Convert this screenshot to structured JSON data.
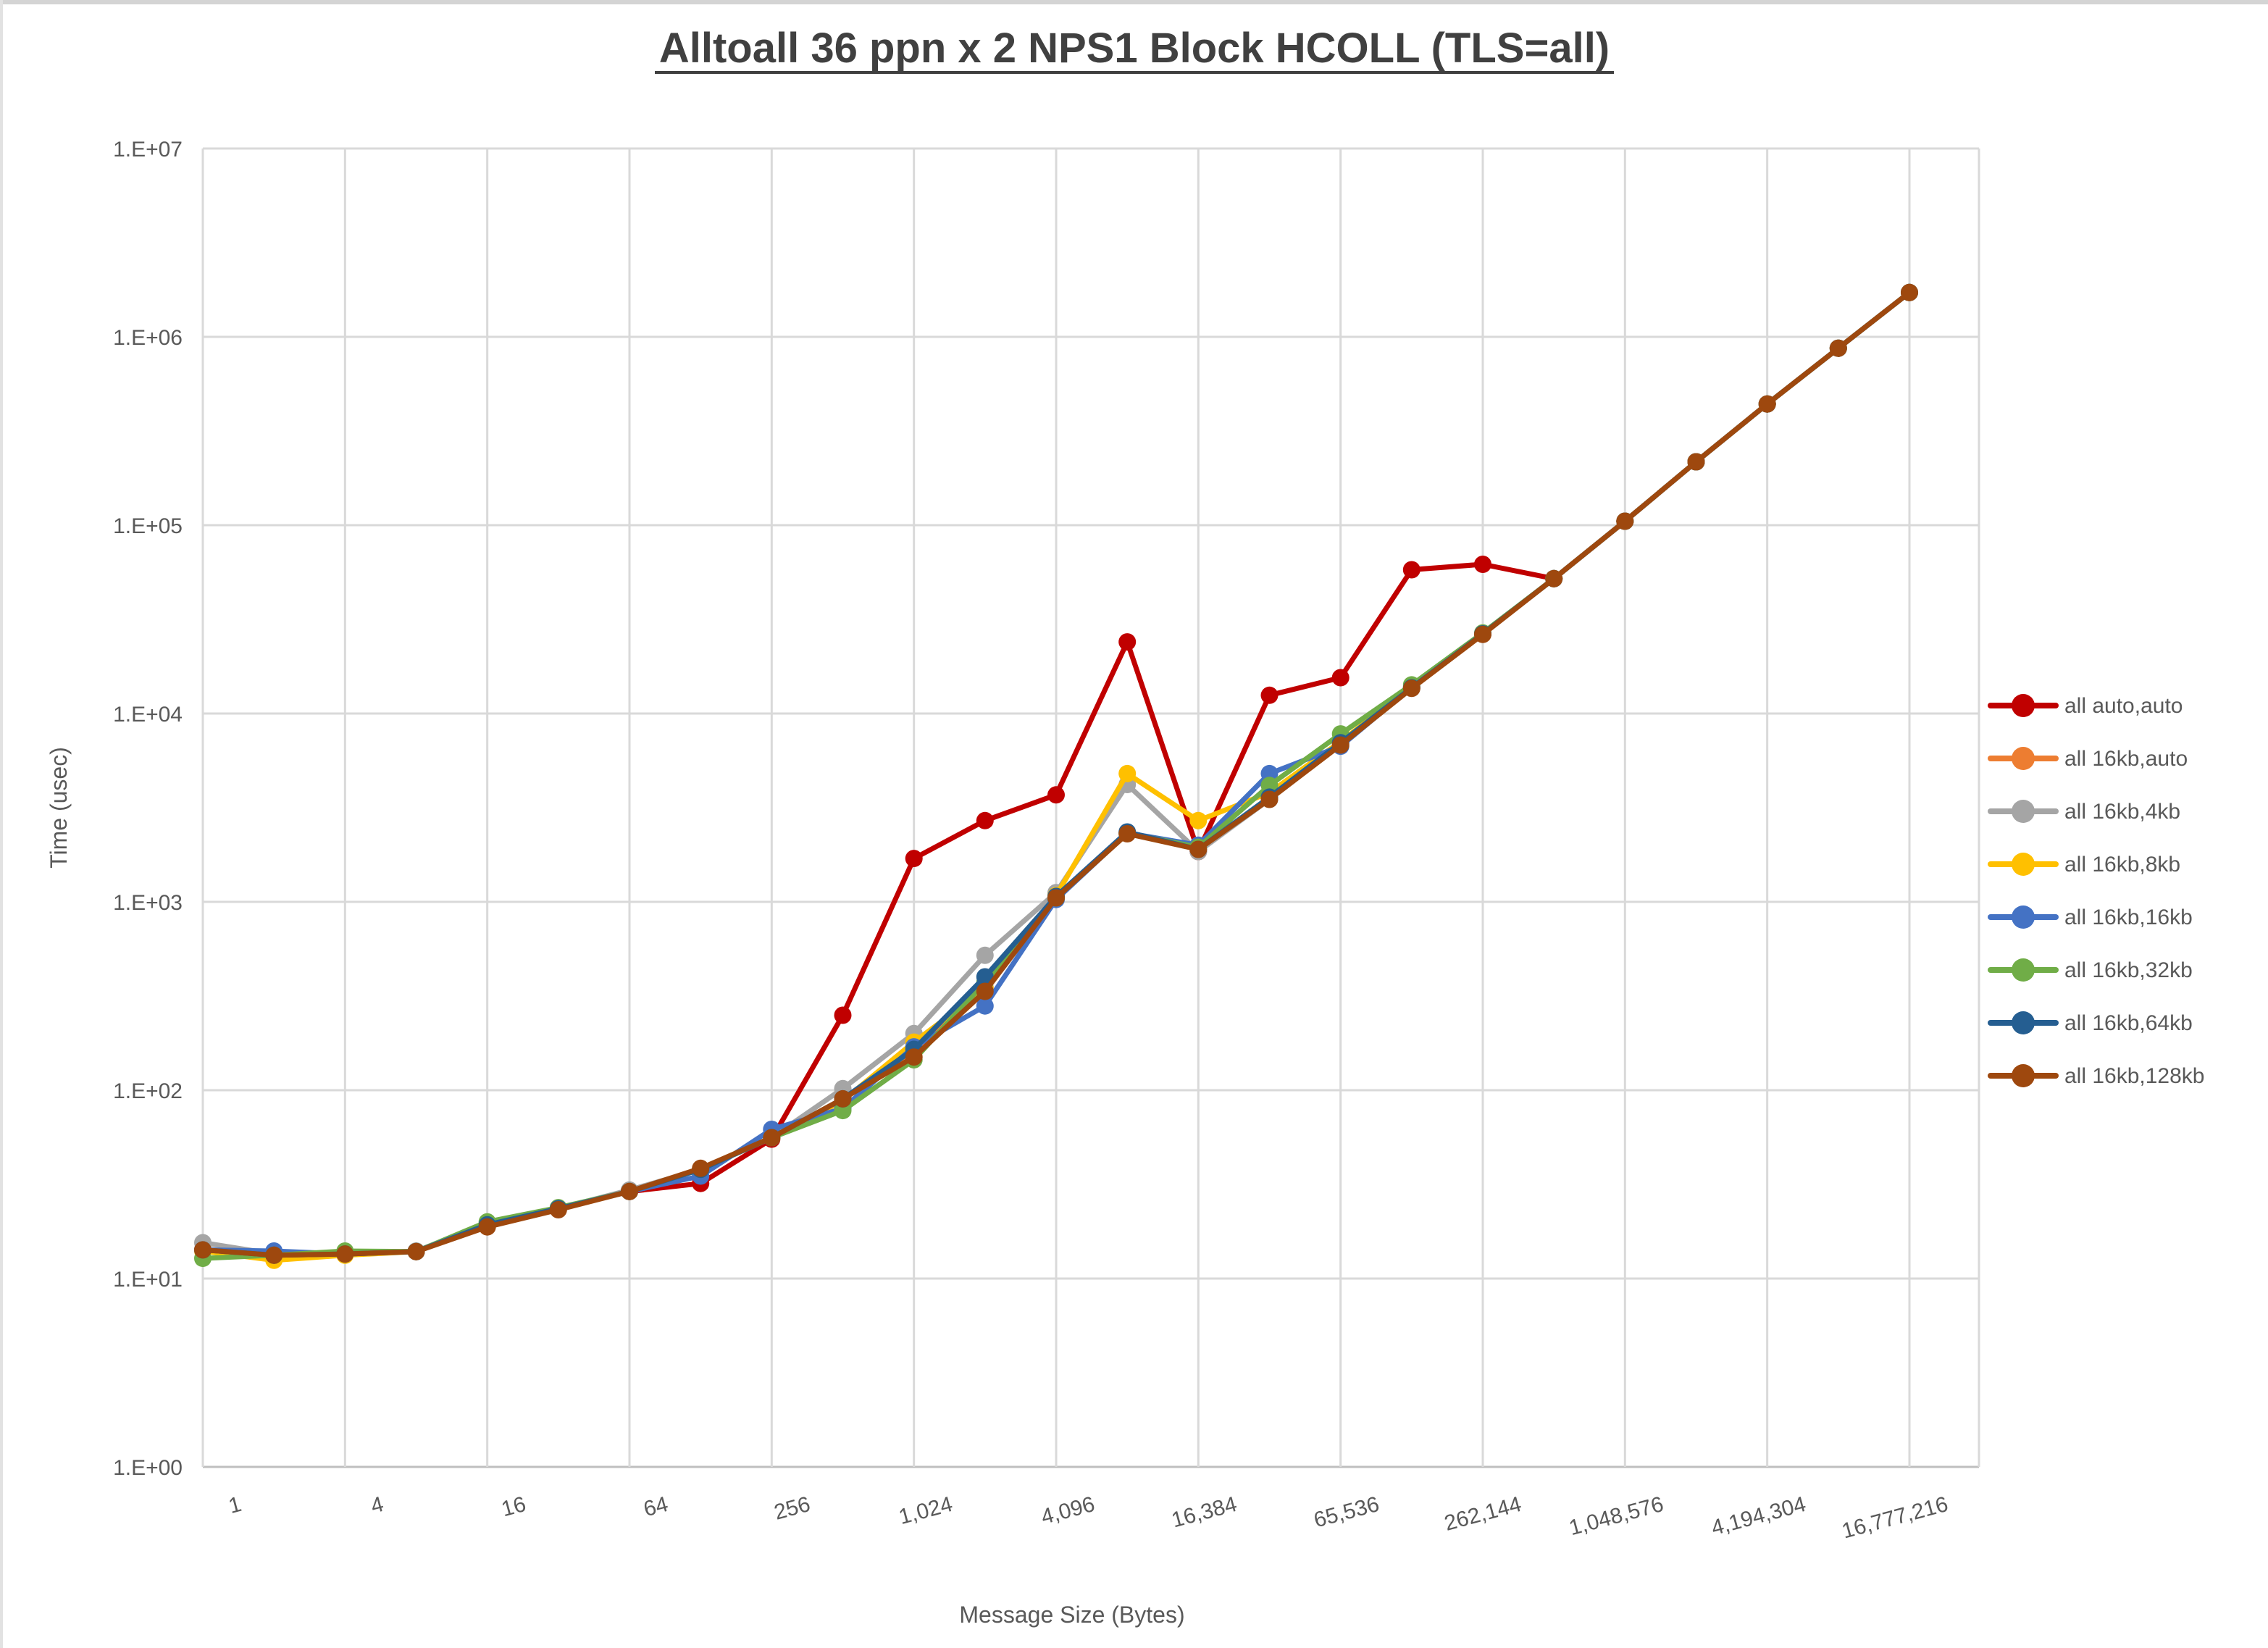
{
  "chart": {
    "title": "Alltoall 36 ppn x 2 NPS1 Block HCOLL (TLS=all)",
    "x_axis_title": "Message Size (Bytes)",
    "y_axis_title": "Time (usec)"
  },
  "colors": {
    "title_text": "#404040",
    "axis_text": "#595959",
    "gridline": "#D9D9D9",
    "axis_line": "#BFBFBF",
    "background": "#FFFFFF"
  },
  "chart_data": {
    "type": "line",
    "title": "Alltoall 36 ppn x 2 NPS1 Block HCOLL (TLS=all)",
    "xlabel": "Message Size (Bytes)",
    "ylabel": "Time (usec)",
    "x_scale": "log2_category",
    "y_scale": "log10",
    "ylim": [
      1,
      10000000
    ],
    "grid": true,
    "legend_position": "right",
    "x": [
      1,
      2,
      4,
      8,
      16,
      32,
      64,
      128,
      256,
      512,
      1024,
      2048,
      4096,
      8192,
      16384,
      32768,
      65536,
      131072,
      262144,
      524288,
      1048576,
      2097152,
      4194304,
      8388608,
      16777216
    ],
    "x_tick_labels": [
      "1",
      "4",
      "16",
      "64",
      "256",
      "1,024",
      "4,096",
      "16,384",
      "65,536",
      "262,144",
      "1,048,576",
      "4,194,304",
      "16,777,216"
    ],
    "y_tick_labels": [
      "1.E+00",
      "1.E+01",
      "1.E+02",
      "1.E+03",
      "1.E+04",
      "1.E+05",
      "1.E+06",
      "1.E+07"
    ],
    "series": [
      {
        "name": "all auto,auto",
        "color": "#C00000",
        "values": [
          14.2,
          13.3,
          13.5,
          13.9,
          19.3,
          23.5,
          29,
          32,
          55,
          250,
          1700,
          2700,
          3700,
          24000,
          1850,
          12500,
          15500,
          58000,
          62000,
          52000,
          105000,
          217000,
          440000,
          870000,
          1720000
        ]
      },
      {
        "name": "all 16kb,auto",
        "color": "#ED7D31",
        "values": [
          14.2,
          13.3,
          13.5,
          13.9,
          19.3,
          23.5,
          29,
          38,
          56,
          90,
          160,
          350,
          1060,
          2320,
          1900,
          3550,
          6900,
          13700,
          26500,
          52000,
          105000,
          217000,
          440000,
          870000,
          1720000
        ]
      },
      {
        "name": "all 16kb,4kb",
        "color": "#A5A5A5",
        "values": [
          15.5,
          13.5,
          13.5,
          14,
          19.5,
          23.5,
          29.5,
          38,
          56,
          102,
          200,
          520,
          1120,
          4200,
          1850,
          3500,
          6900,
          13700,
          26500,
          52000,
          105000,
          217000,
          440000,
          870000,
          1720000
        ]
      },
      {
        "name": "all 16kb,8kb",
        "color": "#FFC000",
        "values": [
          14,
          12.5,
          13.3,
          13.9,
          19.3,
          23.5,
          29,
          38,
          56,
          88,
          180,
          345,
          1080,
          4800,
          2700,
          3800,
          7100,
          13800,
          26500,
          52000,
          105000,
          217000,
          440000,
          870000,
          1720000
        ]
      },
      {
        "name": "all 16kb,16kb",
        "color": "#4472C4",
        "values": [
          14.2,
          14,
          13.5,
          13.9,
          19.5,
          23.5,
          29,
          35,
          62,
          80,
          170,
          280,
          1030,
          2320,
          2000,
          4800,
          6700,
          13800,
          26500,
          52000,
          105000,
          217000,
          440000,
          870000,
          1720000
        ]
      },
      {
        "name": "all 16kb,32kb",
        "color": "#70AD47",
        "values": [
          12.8,
          13.3,
          14,
          13.9,
          20,
          23.8,
          29,
          38,
          56,
          78,
          145,
          375,
          1050,
          2320,
          1950,
          4150,
          7800,
          14200,
          26800,
          52000,
          105000,
          217000,
          440000,
          870000,
          1720000
        ]
      },
      {
        "name": "all 16kb,64kb",
        "color": "#255E91",
        "values": [
          14.2,
          13.3,
          13.5,
          13.9,
          19.3,
          23.5,
          29,
          38,
          56,
          90,
          165,
          400,
          1070,
          2350,
          1900,
          3600,
          7000,
          13700,
          26500,
          52000,
          105000,
          217000,
          440000,
          870000,
          1720000
        ]
      },
      {
        "name": "all 16kb,128kb",
        "color": "#9E480E",
        "values": [
          14.2,
          13.3,
          13.5,
          13.9,
          18.8,
          23.2,
          29,
          38.5,
          56,
          90,
          150,
          335,
          1050,
          2300,
          1900,
          3500,
          6800,
          13600,
          26300,
          52000,
          105000,
          217000,
          440000,
          870000,
          1720000
        ]
      }
    ]
  }
}
